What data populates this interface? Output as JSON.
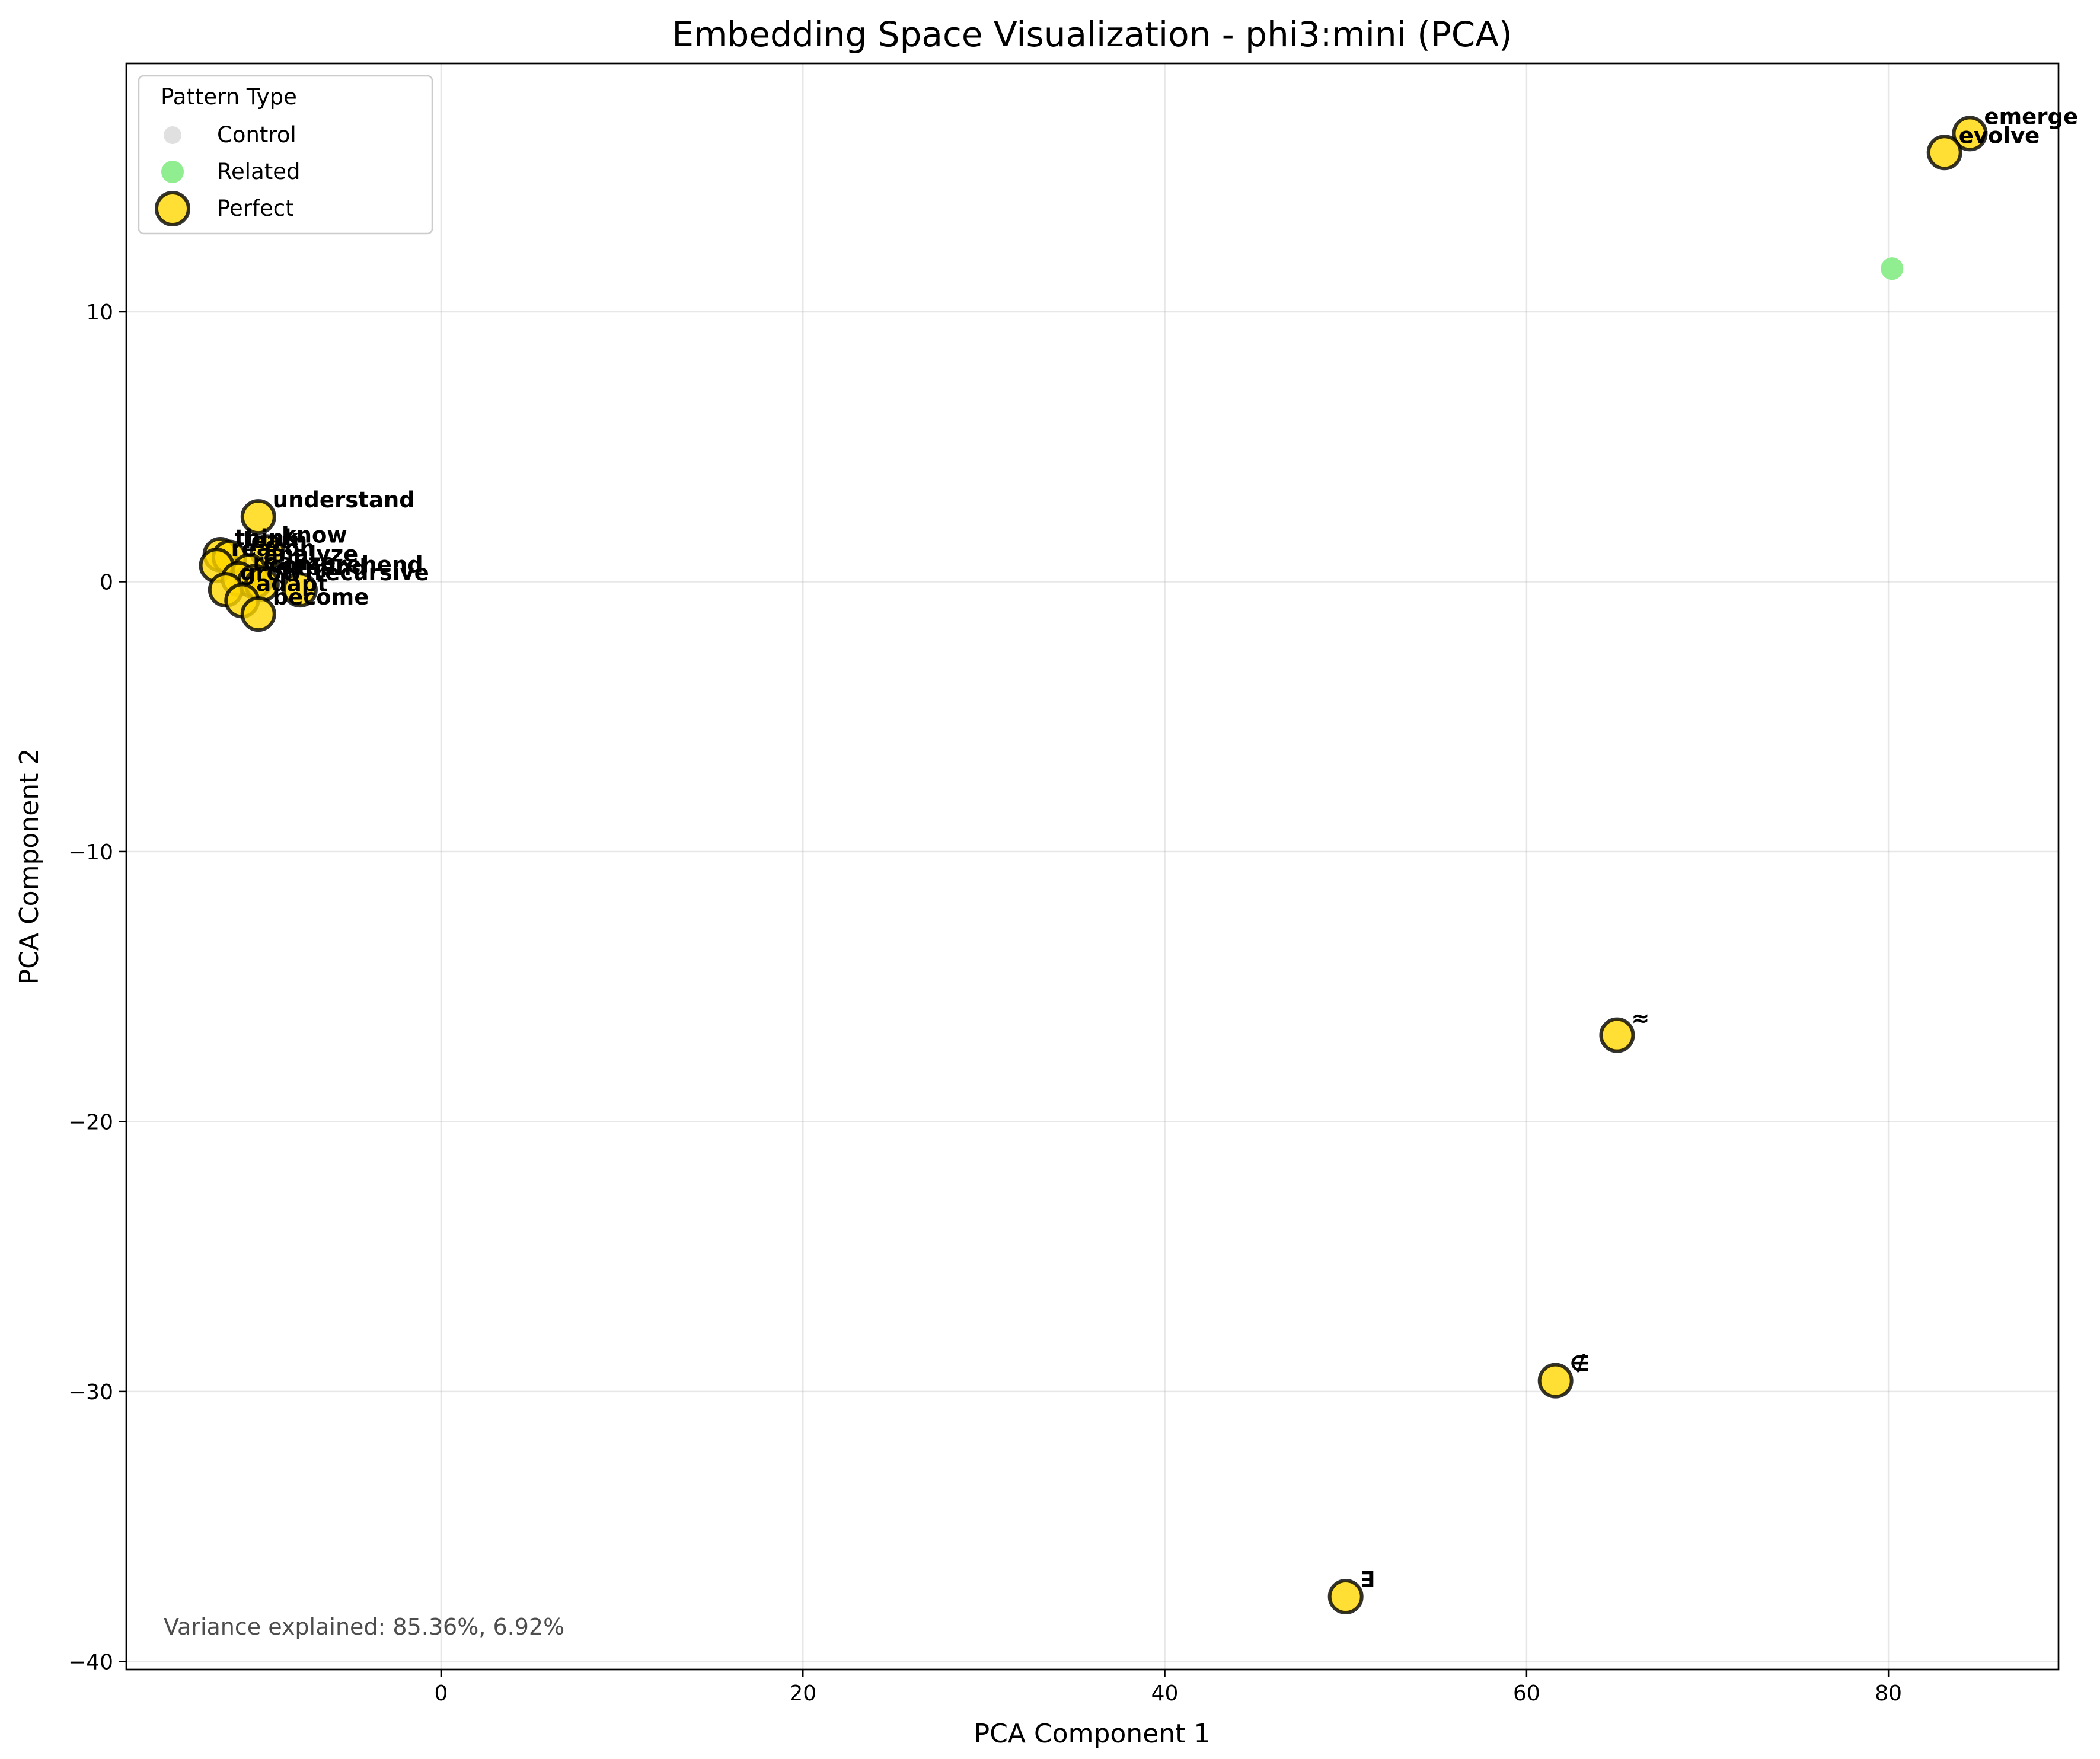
{
  "chart_data": {
    "type": "scatter",
    "title": "Embedding Space Visualization - phi3:mini (PCA)",
    "xlabel": "PCA Component 1",
    "ylabel": "PCA Component 2",
    "xlim": [
      -17.4,
      89.4
    ],
    "ylim": [
      -40.3,
      19.2
    ],
    "xticks": [
      0,
      20,
      40,
      60,
      80
    ],
    "yticks": [
      -40,
      -30,
      -20,
      -10,
      0,
      10
    ],
    "xtick_labels": [
      "0",
      "20",
      "40",
      "60",
      "80"
    ],
    "ytick_labels": [
      "−40",
      "−30",
      "−20",
      "−10",
      "0",
      "10"
    ],
    "grid": true,
    "legend": {
      "title": "Pattern Type",
      "position": "upper-left",
      "entries": [
        "Control",
        "Related",
        "Perfect"
      ]
    },
    "annotation": "Variance explained: 85.36%, 6.92%",
    "colors": {
      "control": "#e0e0e0",
      "related": "#90ee90",
      "perfect": "#ffd700",
      "perfect_edge": "#000000"
    },
    "series": [
      {
        "name": "Related",
        "points": [
          {
            "x": 80.2,
            "y": 11.6
          }
        ]
      },
      {
        "name": "Perfect",
        "points": [
          {
            "x": -10.1,
            "y": 2.4,
            "label": "understand"
          },
          {
            "x": -9.6,
            "y": 1.1,
            "label": "know"
          },
          {
            "x": -12.2,
            "y": 1.0,
            "label": "think"
          },
          {
            "x": -11.7,
            "y": 0.9,
            "label": "learn"
          },
          {
            "x": -12.4,
            "y": 0.6,
            "label": "reason"
          },
          {
            "x": -10.6,
            "y": 0.4,
            "label": "analyze"
          },
          {
            "x": -11.2,
            "y": 0.1,
            "label": "realize"
          },
          {
            "x": -10.3,
            "y": 0.0,
            "label": "comprehend"
          },
          {
            "x": -9.9,
            "y": -0.1,
            "label": "expand"
          },
          {
            "x": -7.8,
            "y": -0.3,
            "label": "recursive"
          },
          {
            "x": -11.9,
            "y": -0.3,
            "label": "grow"
          },
          {
            "x": -11.0,
            "y": -0.7,
            "label": "adapt"
          },
          {
            "x": -10.1,
            "y": -1.2,
            "label": "become"
          },
          {
            "x": 84.5,
            "y": 16.6,
            "label": "emerge"
          },
          {
            "x": 83.1,
            "y": 15.9,
            "label": "evolve"
          },
          {
            "x": 65.0,
            "y": -16.8,
            "label": "≈"
          },
          {
            "x": 61.6,
            "y": -29.6,
            "label": "∉"
          },
          {
            "x": 50.0,
            "y": -37.6,
            "label": "∃"
          }
        ]
      }
    ]
  }
}
